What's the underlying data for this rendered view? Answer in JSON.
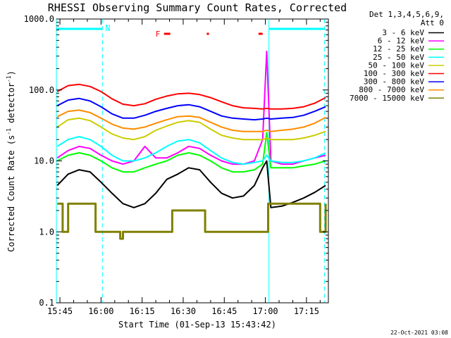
{
  "chart_data": {
    "type": "line",
    "title": "RHESSI Observing Summary Count Rates, Corrected",
    "xlabel": "Start Time (01-Sep-13 15:43:42)",
    "ylabel_main": "Corrected Count Rate (s",
    "ylabel_sup1": "-1",
    "ylabel_mid": " detector",
    "ylabel_sup2": "-1",
    "ylabel_end": ")",
    "y_scale": "log",
    "ylim": [
      0.1,
      1000
    ],
    "xlim": [
      "15:43:42",
      "17:23:00"
    ],
    "ytick_labels": [
      "1000.0",
      "100.0",
      "10.0",
      "1.0",
      "0.1"
    ],
    "ytick_values": [
      1000,
      100,
      10,
      1,
      0.1
    ],
    "xtick_labels": [
      "15:45",
      "16:00",
      "16:15",
      "16:30",
      "16:45",
      "17:00",
      "17:15"
    ],
    "xtick_minutes": [
      945,
      960,
      975,
      990,
      1005,
      1020,
      1035
    ],
    "x_start_minutes": 943.7,
    "x_end_minutes": 1043,
    "legend_header": [
      "Det 1,3,4,5,6,9,",
      "Att 0"
    ],
    "legend_position": "right",
    "series": [
      {
        "name": "3 - 6 keV",
        "color": "#000000",
        "x_minutes": [
          944,
          948,
          952,
          956,
          960,
          964,
          968,
          972,
          976,
          980,
          984,
          988,
          992,
          996,
          1000,
          1004,
          1008,
          1012,
          1016,
          1019,
          1020.5,
          1022,
          1026,
          1030,
          1034,
          1038,
          1042
        ],
        "values": [
          4.5,
          6.5,
          7.5,
          7.0,
          5.0,
          3.5,
          2.5,
          2.2,
          2.5,
          3.5,
          5.5,
          6.5,
          8.0,
          7.5,
          5.0,
          3.5,
          3.0,
          3.2,
          4.5,
          8.0,
          10.0,
          2.2,
          2.3,
          2.6,
          3.0,
          3.6,
          4.5
        ]
      },
      {
        "name": "6 - 12 keV",
        "color": "#ff00ff",
        "x_minutes": [
          944,
          948,
          952,
          956,
          960,
          964,
          968,
          972,
          976,
          980,
          984,
          988,
          992,
          996,
          1000,
          1004,
          1008,
          1012,
          1016,
          1019,
          1020.5,
          1022,
          1026,
          1030,
          1034,
          1038,
          1042
        ],
        "values": [
          11,
          14,
          16,
          15,
          12,
          10,
          9,
          10,
          16,
          11,
          11,
          13,
          16,
          15,
          12,
          10,
          9,
          9,
          10,
          20,
          350,
          10,
          9,
          9,
          10,
          11,
          12
        ]
      },
      {
        "name": "12 - 25 keV",
        "color": "#00ff00",
        "x_minutes": [
          944,
          948,
          952,
          956,
          960,
          964,
          968,
          972,
          976,
          980,
          984,
          988,
          992,
          996,
          1000,
          1004,
          1008,
          1012,
          1016,
          1019,
          1020.5,
          1022,
          1026,
          1030,
          1034,
          1038,
          1042
        ],
        "values": [
          10,
          12,
          13,
          12,
          10,
          8,
          7,
          7,
          8,
          9,
          10,
          12,
          13,
          12,
          10,
          8,
          7,
          7,
          7.5,
          9,
          25,
          8,
          8,
          8,
          8.5,
          9,
          10
        ]
      },
      {
        "name": "25 - 50 keV",
        "color": "#00ffff",
        "x_minutes": [
          944,
          948,
          952,
          956,
          960,
          964,
          968,
          972,
          976,
          980,
          984,
          988,
          992,
          996,
          1000,
          1004,
          1008,
          1012,
          1016,
          1019,
          1020.5,
          1022,
          1026,
          1030,
          1034,
          1038,
          1042
        ],
        "values": [
          16,
          20,
          22,
          20,
          16,
          12,
          10,
          10,
          11,
          13,
          16,
          19,
          20,
          18,
          14,
          11,
          9.5,
          9,
          9.5,
          10,
          12,
          10,
          9.5,
          9.5,
          10,
          11,
          13
        ]
      },
      {
        "name": "50 - 100 keV",
        "color": "#cccc00",
        "x_minutes": [
          944,
          948,
          952,
          956,
          960,
          964,
          968,
          972,
          976,
          980,
          984,
          988,
          992,
          996,
          1000,
          1004,
          1008,
          1012,
          1016,
          1019,
          1020.5,
          1022,
          1026,
          1030,
          1034,
          1038,
          1042
        ],
        "values": [
          30,
          38,
          40,
          37,
          30,
          24,
          21,
          20,
          22,
          27,
          31,
          35,
          37,
          35,
          28,
          23,
          21,
          20,
          20,
          20,
          21,
          20,
          20,
          20,
          21,
          23,
          26
        ]
      },
      {
        "name": "100 - 300 keV",
        "color": "#ff0000",
        "x_minutes": [
          944,
          948,
          952,
          956,
          960,
          964,
          968,
          972,
          976,
          980,
          984,
          988,
          992,
          996,
          1000,
          1004,
          1008,
          1012,
          1016,
          1019,
          1020.5,
          1022,
          1026,
          1030,
          1034,
          1038,
          1042
        ],
        "values": [
          95,
          115,
          120,
          112,
          95,
          75,
          63,
          60,
          64,
          74,
          82,
          88,
          90,
          86,
          78,
          68,
          60,
          56,
          55,
          54,
          55,
          54,
          54,
          55,
          58,
          65,
          78
        ]
      },
      {
        "name": "300 - 800 keV",
        "color": "#0000ff",
        "x_minutes": [
          944,
          948,
          952,
          956,
          960,
          964,
          968,
          972,
          976,
          980,
          984,
          988,
          992,
          996,
          1000,
          1004,
          1008,
          1012,
          1016,
          1019,
          1020.5,
          1022,
          1026,
          1030,
          1034,
          1038,
          1042
        ],
        "values": [
          60,
          72,
          76,
          70,
          58,
          46,
          40,
          40,
          44,
          50,
          55,
          60,
          62,
          58,
          50,
          43,
          40,
          39,
          38,
          39,
          40,
          39,
          40,
          41,
          44,
          50,
          58
        ]
      },
      {
        "name": "800 - 7000 keV",
        "color": "#ff8c00",
        "x_minutes": [
          944,
          948,
          952,
          956,
          960,
          964,
          968,
          972,
          976,
          980,
          984,
          988,
          992,
          996,
          1000,
          1004,
          1008,
          1012,
          1016,
          1019,
          1020.5,
          1022,
          1026,
          1030,
          1034,
          1038,
          1042
        ],
        "values": [
          42,
          50,
          52,
          48,
          40,
          33,
          29,
          28,
          30,
          34,
          38,
          42,
          43,
          41,
          35,
          30,
          27,
          26,
          26,
          26,
          27,
          26,
          27,
          28,
          30,
          34,
          41
        ]
      },
      {
        "name": "7000 - 15000 keV",
        "color": "#808000",
        "x_minutes": [
          944,
          946,
          948,
          952,
          956,
          958,
          960,
          964,
          967,
          968,
          972,
          976,
          980,
          984,
          986,
          990,
          994,
          996,
          998,
          1002,
          1006,
          1010,
          1014,
          1018,
          1020.5,
          1021,
          1026,
          1030,
          1034,
          1038,
          1040,
          1042
        ],
        "values": [
          2.5,
          1.0,
          2.5,
          2.5,
          2.5,
          1.0,
          1.0,
          1.0,
          0.8,
          1.0,
          1.0,
          1.0,
          1.0,
          1.0,
          2.0,
          2.0,
          2.0,
          2.0,
          1.0,
          1.0,
          1.0,
          1.0,
          1.0,
          1.0,
          1.0,
          2.5,
          2.5,
          2.5,
          2.5,
          2.5,
          1.0,
          2.5
        ]
      }
    ],
    "annotations": {
      "n_label": "N",
      "f_label": "F",
      "cyan_bar_color": "#00ffff",
      "red_bar_color": "#ff0000",
      "n_bars": [
        [
          943.7,
          960.5
        ],
        [
          1021.3,
          1041.6
        ]
      ],
      "f_bars": [
        [
          983,
          985.3
        ],
        [
          998.6,
          999.4
        ],
        [
          1017.5,
          1019
        ]
      ],
      "dashed_lines_minutes": [
        960.5,
        1041.6
      ],
      "solid_lines_minutes": [
        943.7,
        1021.3
      ]
    },
    "grid": false
  },
  "footer_date": "22-Oct-2021 03:08"
}
